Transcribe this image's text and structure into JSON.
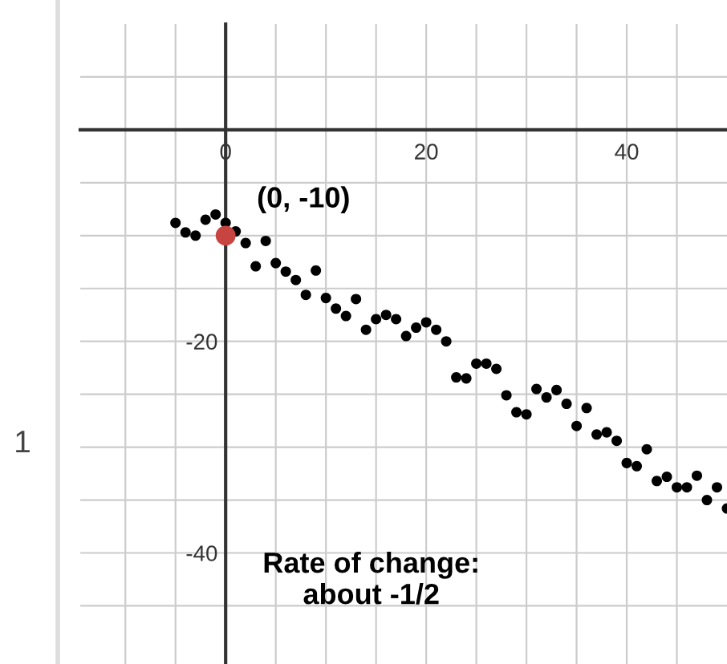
{
  "chart_data": {
    "type": "scatter",
    "series": [
      {
        "color": "#000000",
        "x": [
          -5,
          -4,
          -3,
          -2,
          -1,
          0,
          1,
          2,
          3,
          4,
          5,
          6,
          7,
          8,
          9,
          10,
          11,
          12,
          13,
          14,
          15,
          16,
          17,
          18,
          19,
          20,
          21,
          22,
          23,
          24,
          25,
          26,
          27,
          28,
          29,
          30,
          31,
          32,
          33,
          34,
          35,
          36,
          37,
          38,
          39,
          40,
          41,
          42,
          43,
          44,
          45,
          46,
          47,
          48,
          49,
          50
        ],
        "values": [
          -8.8,
          -9.7,
          -10.0,
          -8.5,
          -8.0,
          -8.8,
          -9.6,
          -10.7,
          -12.9,
          -10.5,
          -12.6,
          -13.4,
          -14.2,
          -15.6,
          -13.3,
          -15.9,
          -16.9,
          -17.6,
          -16.0,
          -18.9,
          -17.9,
          -17.5,
          -17.9,
          -19.5,
          -18.7,
          -18.2,
          -18.9,
          -20.0,
          -23.4,
          -23.5,
          -22.1,
          -22.1,
          -22.6,
          -25.1,
          -26.7,
          -26.9,
          -24.5,
          -25.3,
          -24.6,
          -25.9,
          -28.0,
          -26.3,
          -28.8,
          -28.6,
          -29.4,
          -31.5,
          -31.8,
          -30.2,
          -33.2,
          -32.8,
          -33.8,
          -33.8,
          -32.7,
          -35.0,
          -33.8,
          -35.8
        ]
      },
      {
        "color": "#c74440",
        "x": [
          0
        ],
        "values": [
          -10
        ]
      }
    ],
    "annotations": [
      {
        "text": "(0, -10)",
        "x": 0,
        "y": -10
      },
      "Rate of change:\nabout -1/2",
      "1"
    ],
    "xlim": [
      -14.5,
      50
    ],
    "ylim": [
      -50.5,
      10
    ],
    "xticks": [
      {
        "value": -10,
        "label": null
      },
      {
        "value": -5,
        "label": null
      },
      0,
      {
        "value": 5,
        "label": null
      },
      {
        "value": 10,
        "label": null
      },
      {
        "value": 15,
        "label": null
      },
      20,
      {
        "value": 25,
        "label": null
      },
      {
        "value": 30,
        "label": null
      },
      {
        "value": 35,
        "label": null
      },
      40,
      {
        "value": 45,
        "label": null
      }
    ],
    "yticks": [
      {
        "value": 5,
        "label": null
      },
      {
        "value": 0,
        "label": null
      },
      {
        "value": -5,
        "label": null
      },
      {
        "value": -10,
        "label": null
      },
      {
        "value": -15,
        "label": null
      },
      -20,
      {
        "value": -25,
        "label": null
      },
      {
        "value": -30,
        "label": null
      },
      {
        "value": -35,
        "label": null
      },
      -40,
      {
        "value": -45,
        "label": null
      }
    ],
    "grid": true,
    "marker": "circle"
  }
}
